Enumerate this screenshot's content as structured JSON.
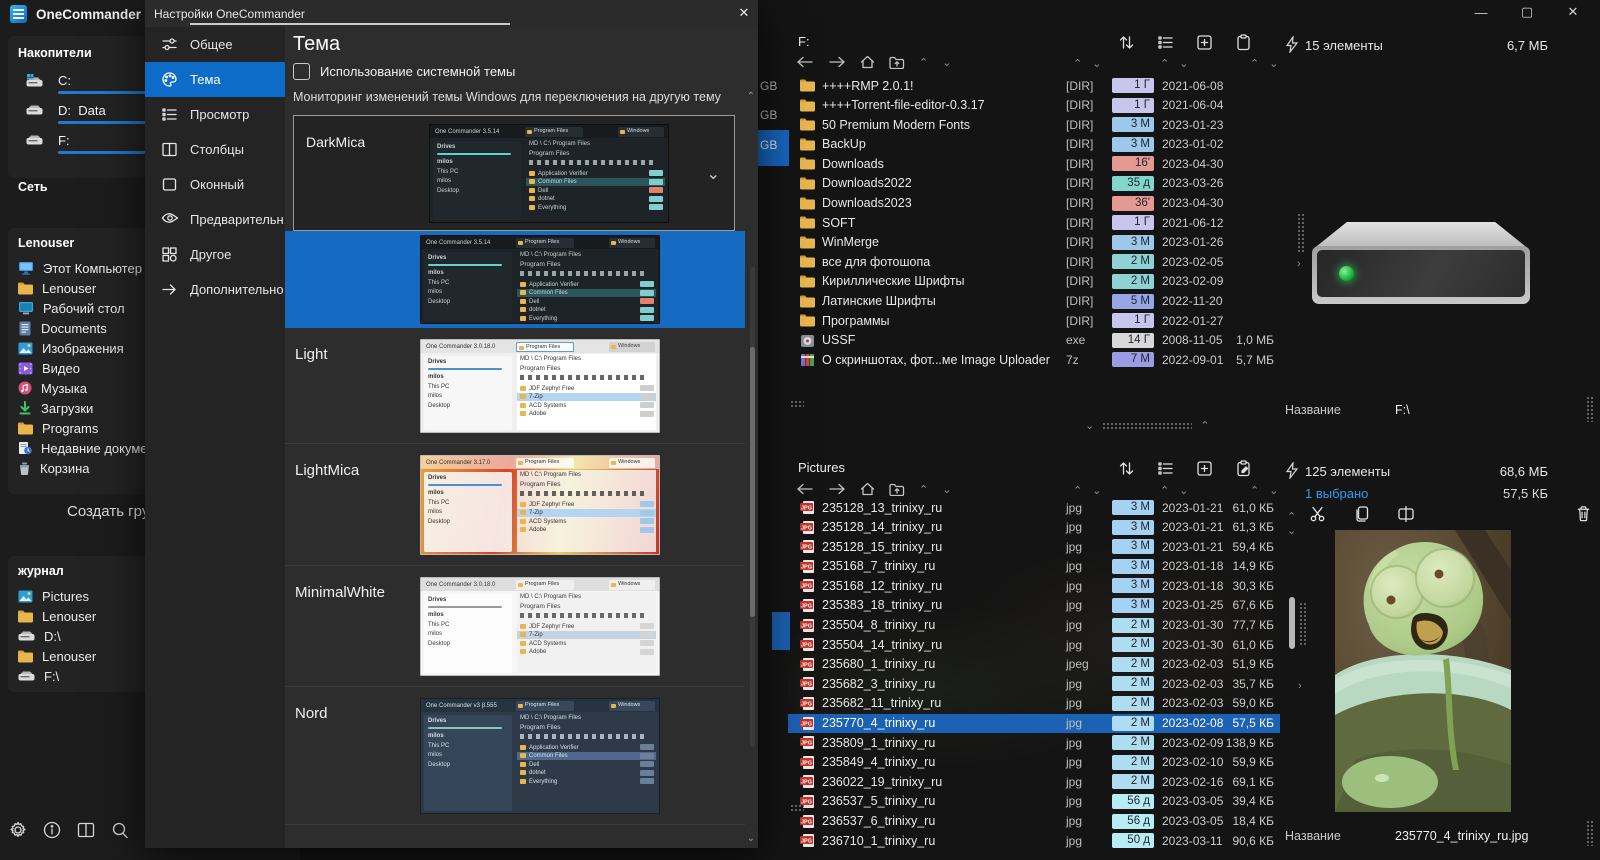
{
  "app": {
    "title": "OneCommander",
    "window_controls": {
      "minimize": "—",
      "maximize": "▢",
      "close": "✕"
    }
  },
  "sidebar": {
    "drives_header": "Накопители",
    "drives": [
      {
        "label": "C:",
        "usage": 55,
        "icon": "system-drive",
        "frag": ""
      },
      {
        "label": "D:  Data",
        "usage": 86,
        "icon": "drive",
        "frag": ""
      },
      {
        "label": "F:",
        "usage": 97,
        "icon": "drive",
        "frag": "1"
      }
    ],
    "network_header": "Сеть",
    "group_header": "Lenouser",
    "group_items": [
      {
        "label": "Этот Компьютер",
        "icon": "computer"
      },
      {
        "label": "Lenouser",
        "icon": "folder"
      },
      {
        "label": "Рабочий стол",
        "icon": "desktop"
      },
      {
        "label": "Documents",
        "icon": "documents"
      },
      {
        "label": "Изображения",
        "icon": "pictures"
      },
      {
        "label": "Видео",
        "icon": "video"
      },
      {
        "label": "Музыка",
        "icon": "music"
      },
      {
        "label": "Загрузки",
        "icon": "downloads"
      },
      {
        "label": "Programs",
        "icon": "folder"
      },
      {
        "label": "Недавние документы",
        "icon": "recent"
      },
      {
        "label": "Корзина",
        "icon": "recycle"
      }
    ],
    "create_group_label": "Создать груп",
    "journal_header": "журнал",
    "journal_items": [
      {
        "label": "Pictures",
        "icon": "pictures"
      },
      {
        "label": "Lenouser",
        "icon": "folder"
      },
      {
        "label": "D:\\",
        "icon": "drive"
      },
      {
        "label": "Lenouser",
        "icon": "folder"
      },
      {
        "label": "F:\\",
        "icon": "drive"
      }
    ],
    "statusbar_icons": [
      "settings-gear",
      "info",
      "dual-pane",
      "search",
      "assistant",
      "new-tab"
    ],
    "statusbar_expand": "›"
  },
  "dialog": {
    "title": "Настройки OneCommander",
    "close_glyph": "✕",
    "nav": [
      {
        "label": "Общее",
        "icon": "sliders",
        "selected": false
      },
      {
        "label": "Тема",
        "icon": "palette",
        "selected": true
      },
      {
        "label": "Просмотр",
        "icon": "view-list",
        "selected": false
      },
      {
        "label": "Столбцы",
        "icon": "columns",
        "selected": false
      },
      {
        "label": "Оконный",
        "icon": "window",
        "selected": false
      },
      {
        "label": "Предварительн...",
        "icon": "eye",
        "selected": false
      },
      {
        "label": "Другое",
        "icon": "grid",
        "selected": false
      },
      {
        "label": "Дополнительно",
        "icon": "arrow-right",
        "selected": false
      }
    ],
    "heading": "Тема",
    "system_theme_checkbox": {
      "label": "Использование системной темы",
      "checked": false
    },
    "description": "Мониторинг изменений темы Windows для переключения на другую тему",
    "dropdown_value": "DarkMica",
    "theme_list": [
      {
        "name": "DarkMica",
        "style": "darkmica",
        "selected": true,
        "version": "One Commander 3.5.14"
      },
      {
        "name": "Light",
        "style": "light",
        "selected": false,
        "version": "One Commander 3.0.18.0"
      },
      {
        "name": "LightMica",
        "style": "lightmica",
        "selected": false,
        "version": "One Commander 3.17.0"
      },
      {
        "name": "MinimalWhite",
        "style": "minimalwhite",
        "selected": false,
        "version": "One Commander 3.0.18.0"
      },
      {
        "name": "Nord",
        "style": "nord",
        "selected": false,
        "version": "One Commander v3 β.555"
      }
    ],
    "preview_content": {
      "tabs": [
        "Program Files",
        "Windows"
      ],
      "drives_label": "Drives",
      "drive_line": "C:  OS        871 / 1003 GB",
      "user_label": "milos",
      "left_items": [
        "This PC",
        "milos",
        "Desktop"
      ],
      "path": "MD \\ C:\\ Program Files",
      "folder": "Program Files",
      "rows_dark": [
        "Application Verifier",
        "Common Files",
        "Dell",
        "dotnet",
        "Everything"
      ],
      "rows_light": [
        "JDF Zephyr Free",
        "7-Zip",
        "ACD Systems",
        "Adobe"
      ]
    }
  },
  "background_fragments": {
    "gb": [
      "GB",
      "GB",
      "GB"
    ]
  },
  "top_panel": {
    "path": "F:",
    "status": {
      "items": "15 элементы",
      "size": "6,7 МБ"
    },
    "footer": {
      "label": "Название",
      "value": "F:\\"
    },
    "toolbar_icons": [
      "sort",
      "view-list",
      "add-pane",
      "clipboard"
    ],
    "rows": [
      {
        "name": "++++RMP 2.0.1!",
        "icon": "folder",
        "ext": "[DIR]",
        "age": "1 Г",
        "age_bg": "#c9c6ed",
        "date": "2021-06-08",
        "size": ""
      },
      {
        "name": "++++Torrent-file-editor-0.3.17",
        "icon": "folder",
        "ext": "[DIR]",
        "age": "1 Г",
        "age_bg": "#c9c6ed",
        "date": "2021-06-04",
        "size": ""
      },
      {
        "name": "50 Premium Modern Fonts",
        "icon": "folder",
        "ext": "[DIR]",
        "age": "3 М",
        "age_bg": "#9dc8ea",
        "date": "2023-01-23",
        "size": ""
      },
      {
        "name": "BackUp",
        "icon": "folder",
        "ext": "[DIR]",
        "age": "3 М",
        "age_bg": "#9dc8ea",
        "date": "2023-01-02",
        "size": ""
      },
      {
        "name": "Downloads",
        "icon": "folder",
        "ext": "[DIR]",
        "age": "16'",
        "age_bg": "#e49992",
        "date": "2023-04-30",
        "size": ""
      },
      {
        "name": "Downloads2022",
        "icon": "folder",
        "ext": "[DIR]",
        "age": "35 д",
        "age_bg": "#83d6cc",
        "date": "2023-03-26",
        "size": ""
      },
      {
        "name": "Downloads2023",
        "icon": "folder",
        "ext": "[DIR]",
        "age": "36'",
        "age_bg": "#e49992",
        "date": "2023-04-30",
        "size": ""
      },
      {
        "name": "SOFT",
        "icon": "folder",
        "ext": "[DIR]",
        "age": "1 Г",
        "age_bg": "#c9c6ed",
        "date": "2021-06-12",
        "size": ""
      },
      {
        "name": "WinMerge",
        "icon": "folder",
        "ext": "[DIR]",
        "age": "3 М",
        "age_bg": "#9dc8ea",
        "date": "2023-01-26",
        "size": ""
      },
      {
        "name": "все для фотошопа",
        "icon": "folder",
        "ext": "[DIR]",
        "age": "2 М",
        "age_bg": "#8fd2d4",
        "date": "2023-02-05",
        "size": ""
      },
      {
        "name": "Кириллические Шрифты",
        "icon": "folder",
        "ext": "[DIR]",
        "age": "2 М",
        "age_bg": "#8fd2d4",
        "date": "2023-02-09",
        "size": ""
      },
      {
        "name": "Латинские Шрифты",
        "icon": "folder",
        "ext": "[DIR]",
        "age": "5 М",
        "age_bg": "#97a7e6",
        "date": "2022-11-20",
        "size": ""
      },
      {
        "name": "Программы",
        "icon": "folder",
        "ext": "[DIR]",
        "age": "1 Г",
        "age_bg": "#c9c6ed",
        "date": "2022-01-27",
        "size": ""
      },
      {
        "name": "USSF",
        "icon": "exe",
        "ext": "exe",
        "age": "14 Г",
        "age_bg": "#d8d8d8",
        "date": "2008-11-05",
        "size": "1,0 МБ"
      },
      {
        "name": "О скриншотах, фот...ме Image Uploader",
        "icon": "archive",
        "ext": "7z",
        "age": "7 М",
        "age_bg": "#9a9ce4",
        "date": "2022-09-01",
        "size": "5,7 МБ"
      }
    ]
  },
  "bottom_panel": {
    "path": "Pictures",
    "status": {
      "items": "125 элементы",
      "size": "68,6 МБ",
      "selected": "1 выбрано",
      "selected_size": "57,5 КБ"
    },
    "footer": {
      "label": "Название",
      "value": "235770_4_trinixy_ru.jpg"
    },
    "toolbar_icons": [
      "sort",
      "view-list",
      "add-pane",
      "clipboard-edit"
    ],
    "action_icons": [
      "cut",
      "copy",
      "paste"
    ],
    "trash_icon": "trash",
    "rows": [
      {
        "name": "235128_13_trinixy_ru",
        "icon": "jpg",
        "ext": "jpg",
        "age": "3 М",
        "age_bg": "#a5d2f2",
        "date": "2023-01-21",
        "size": "61,0 КБ",
        "selected": false
      },
      {
        "name": "235128_14_trinixy_ru",
        "icon": "jpg",
        "ext": "jpg",
        "age": "3 М",
        "age_bg": "#a5d2f2",
        "date": "2023-01-21",
        "size": "61,3 КБ",
        "selected": false
      },
      {
        "name": "235128_15_trinixy_ru",
        "icon": "jpg",
        "ext": "jpg",
        "age": "3 М",
        "age_bg": "#a5d2f2",
        "date": "2023-01-21",
        "size": "59,4 КБ",
        "selected": false
      },
      {
        "name": "235168_7_trinixy_ru",
        "icon": "jpg",
        "ext": "jpg",
        "age": "3 М",
        "age_bg": "#a5d2f2",
        "date": "2023-01-18",
        "size": "14,9 КБ",
        "selected": false
      },
      {
        "name": "235168_12_trinixy_ru",
        "icon": "jpg",
        "ext": "jpg",
        "age": "3 М",
        "age_bg": "#a5d2f2",
        "date": "2023-01-18",
        "size": "30,3 КБ",
        "selected": false
      },
      {
        "name": "235383_18_trinixy_ru",
        "icon": "jpg",
        "ext": "jpg",
        "age": "3 М",
        "age_bg": "#a5d2f2",
        "date": "2023-01-25",
        "size": "67,6 КБ",
        "selected": false
      },
      {
        "name": "235504_8_trinixy_ru",
        "icon": "jpg",
        "ext": "jpg",
        "age": "2 М",
        "age_bg": "#aedcf0",
        "date": "2023-01-30",
        "size": "77,7 КБ",
        "selected": false
      },
      {
        "name": "235504_14_trinixy_ru",
        "icon": "jpg",
        "ext": "jpg",
        "age": "2 М",
        "age_bg": "#aedcf0",
        "date": "2023-01-30",
        "size": "61,0 КБ",
        "selected": false
      },
      {
        "name": "235680_1_trinixy_ru",
        "icon": "jpg",
        "ext": "jpeg",
        "age": "2 М",
        "age_bg": "#aedcf0",
        "date": "2023-02-03",
        "size": "51,9 КБ",
        "selected": false
      },
      {
        "name": "235682_3_trinixy_ru",
        "icon": "jpg",
        "ext": "jpg",
        "age": "2 М",
        "age_bg": "#aedcf0",
        "date": "2023-02-03",
        "size": "35,7 КБ",
        "selected": false
      },
      {
        "name": "235682_11_trinixy_ru",
        "icon": "jpg",
        "ext": "jpg",
        "age": "2 М",
        "age_bg": "#aedcf0",
        "date": "2023-02-03",
        "size": "59,0 КБ",
        "selected": false
      },
      {
        "name": "235770_4_trinixy_ru",
        "icon": "jpg",
        "ext": "jpg",
        "age": "2 М",
        "age_bg": "#aedcf0",
        "date": "2023-02-08",
        "size": "57,5 КБ",
        "selected": true
      },
      {
        "name": "235809_1_trinixy_ru",
        "icon": "jpg",
        "ext": "jpg",
        "age": "2 М",
        "age_bg": "#aedcf0",
        "date": "2023-02-09",
        "size": "138,9 КБ",
        "selected": false
      },
      {
        "name": "235849_4_trinixy_ru",
        "icon": "jpg",
        "ext": "jpg",
        "age": "2 М",
        "age_bg": "#aedcf0",
        "date": "2023-02-10",
        "size": "59,9 КБ",
        "selected": false
      },
      {
        "name": "236022_19_trinixy_ru",
        "icon": "jpg",
        "ext": "jpg",
        "age": "2 М",
        "age_bg": "#aedcf0",
        "date": "2023-02-16",
        "size": "69,1 КБ",
        "selected": false
      },
      {
        "name": "236537_5_trinixy_ru",
        "icon": "jpg",
        "ext": "jpg",
        "age": "56 д",
        "age_bg": "#b8ecf4",
        "date": "2023-03-05",
        "size": "39,4 КБ",
        "selected": false
      },
      {
        "name": "236537_6_trinixy_ru",
        "icon": "jpg",
        "ext": "jpg",
        "age": "56 д",
        "age_bg": "#b8ecf4",
        "date": "2023-03-05",
        "size": "18,4 КБ",
        "selected": false
      },
      {
        "name": "236710_1_trinixy_ru",
        "icon": "jpg",
        "ext": "jpg",
        "age": "50 д",
        "age_bg": "#b8ecf4",
        "date": "2023-03-11",
        "size": "90,6 КБ",
        "selected": false
      }
    ]
  },
  "colors": {
    "accent": "#0d6cc8",
    "selection": "#1b62b4"
  }
}
